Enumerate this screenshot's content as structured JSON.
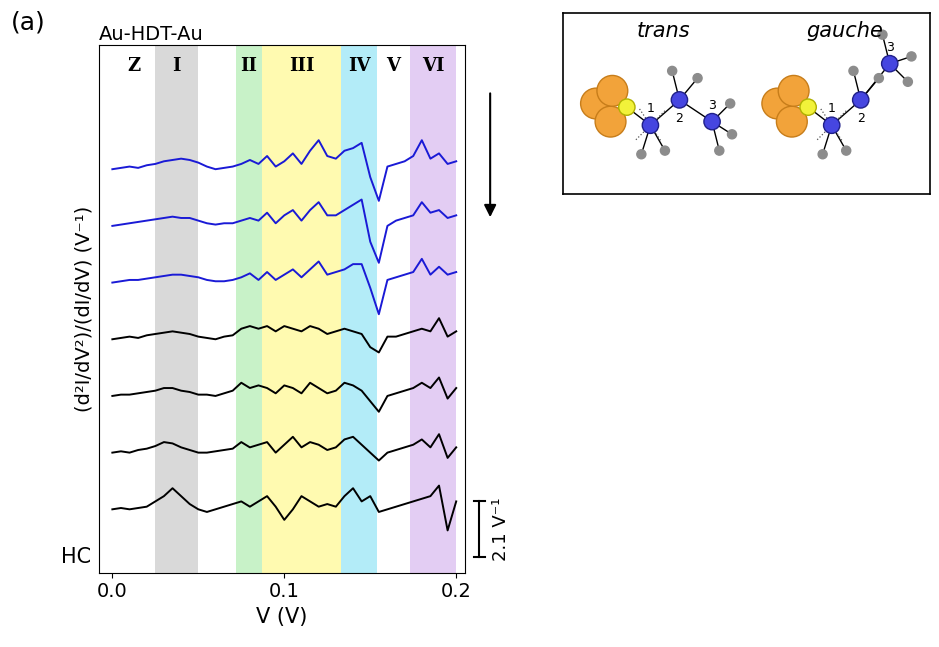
{
  "chart_data": {
    "type": "line",
    "panel_label": "(a)",
    "title": "Au-HDT-Au",
    "x_label": "V (V)",
    "y_label": "(d²I/dV²)/(dI/dV) (V⁻¹)",
    "x": [
      0,
      0.005,
      0.01,
      0.015,
      0.02,
      0.025,
      0.03,
      0.035,
      0.04,
      0.045,
      0.05,
      0.055,
      0.06,
      0.065,
      0.07,
      0.075,
      0.08,
      0.085,
      0.09,
      0.095,
      0.1,
      0.105,
      0.11,
      0.115,
      0.12,
      0.125,
      0.13,
      0.135,
      0.14,
      0.145,
      0.15,
      0.155,
      0.16,
      0.165,
      0.17,
      0.175,
      0.18,
      0.185,
      0.19,
      0.195,
      0.2
    ],
    "series": [
      {
        "color": "#1a1ad6",
        "values": [
          15.3,
          15.35,
          15.4,
          15.35,
          15.45,
          15.5,
          15.6,
          15.65,
          15.7,
          15.65,
          15.55,
          15.4,
          15.3,
          15.35,
          15.4,
          15.5,
          15.65,
          15.5,
          15.8,
          15.4,
          15.6,
          15.9,
          15.5,
          16.0,
          16.4,
          15.8,
          15.7,
          16.0,
          16.1,
          16.3,
          15.0,
          14.1,
          15.4,
          15.5,
          15.6,
          15.8,
          16.4,
          15.7,
          15.9,
          15.5,
          15.6
        ]
      },
      {
        "color": "#1a1ad6",
        "values": [
          13.15,
          13.2,
          13.25,
          13.3,
          13.35,
          13.4,
          13.45,
          13.5,
          13.45,
          13.45,
          13.35,
          13.25,
          13.2,
          13.25,
          13.25,
          13.35,
          13.45,
          13.35,
          13.65,
          13.25,
          13.55,
          13.75,
          13.35,
          13.75,
          14.05,
          13.55,
          13.55,
          13.75,
          13.95,
          14.15,
          12.55,
          11.75,
          13.15,
          13.35,
          13.45,
          13.55,
          14.05,
          13.65,
          13.75,
          13.45,
          13.55
        ]
      },
      {
        "color": "#1a1ad6",
        "values": [
          11.0,
          11.05,
          11.1,
          11.1,
          11.15,
          11.2,
          11.25,
          11.3,
          11.3,
          11.25,
          11.2,
          11.1,
          11.05,
          11.05,
          11.1,
          11.2,
          11.35,
          11.1,
          11.4,
          11.1,
          11.3,
          11.5,
          11.2,
          11.5,
          11.8,
          11.3,
          11.4,
          11.5,
          11.7,
          11.7,
          10.8,
          9.8,
          11.1,
          11.2,
          11.3,
          11.4,
          11.9,
          11.3,
          11.6,
          11.3,
          11.4
        ]
      },
      {
        "color": "#000000",
        "values": [
          8.85,
          8.9,
          8.95,
          8.9,
          9.0,
          9.05,
          9.1,
          9.15,
          9.1,
          9.05,
          8.95,
          8.9,
          8.85,
          8.95,
          9.0,
          9.25,
          9.35,
          9.25,
          9.35,
          9.15,
          9.35,
          9.25,
          9.15,
          9.35,
          9.25,
          9.05,
          9.15,
          9.25,
          9.15,
          9.05,
          8.55,
          8.35,
          8.95,
          8.95,
          9.05,
          9.15,
          9.25,
          9.15,
          9.65,
          8.95,
          9.15
        ]
      },
      {
        "color": "#000000",
        "values": [
          6.7,
          6.75,
          6.75,
          6.8,
          6.85,
          6.9,
          7.0,
          7.0,
          6.9,
          6.85,
          6.75,
          6.75,
          6.7,
          6.8,
          6.9,
          7.2,
          7.0,
          7.1,
          7.0,
          6.8,
          7.1,
          7.0,
          6.8,
          7.2,
          7.0,
          6.8,
          6.9,
          7.2,
          7.1,
          6.9,
          6.5,
          6.1,
          6.7,
          6.8,
          6.9,
          7.0,
          7.2,
          7.0,
          7.4,
          6.6,
          7.0
        ]
      },
      {
        "color": "#000000",
        "values": [
          4.55,
          4.6,
          4.55,
          4.65,
          4.7,
          4.8,
          4.95,
          4.9,
          4.75,
          4.65,
          4.55,
          4.55,
          4.6,
          4.65,
          4.7,
          4.95,
          4.75,
          4.85,
          4.95,
          4.55,
          4.85,
          5.15,
          4.75,
          4.95,
          4.85,
          4.65,
          4.75,
          5.05,
          5.15,
          4.85,
          4.55,
          4.25,
          4.55,
          4.65,
          4.75,
          4.85,
          5.05,
          4.75,
          5.25,
          4.35,
          4.75
        ]
      },
      {
        "name": "HC",
        "color": "#000000",
        "values": [
          2.4,
          2.45,
          2.4,
          2.45,
          2.5,
          2.7,
          2.9,
          3.2,
          2.9,
          2.6,
          2.4,
          2.3,
          2.4,
          2.5,
          2.6,
          2.7,
          2.5,
          2.7,
          2.9,
          2.5,
          2.0,
          2.4,
          2.9,
          2.7,
          2.5,
          2.6,
          2.5,
          2.9,
          3.2,
          2.7,
          2.9,
          2.3,
          2.4,
          2.5,
          2.6,
          2.7,
          2.8,
          2.9,
          3.3,
          1.6,
          2.7
        ]
      }
    ],
    "xlim": [
      -0.008,
      0.205
    ],
    "ylim": [
      0,
      20
    ],
    "xticks": [
      {
        "value": 0,
        "label": "0.0"
      },
      0.1,
      0.2
    ],
    "yticks": [],
    "tick_labels": "x",
    "regions": [
      {
        "label": "Z",
        "start": 0,
        "end": 0.025,
        "color": null
      },
      {
        "label": "I",
        "start": 0.025,
        "end": 0.05,
        "color": "#d9d9d9"
      },
      {
        "label": "II",
        "start": 0.072,
        "end": 0.087,
        "color": "#c8f2c8"
      },
      {
        "label": "III",
        "start": 0.087,
        "end": 0.133,
        "color": "#fffab0"
      },
      {
        "label": "IV",
        "start": 0.133,
        "end": 0.154,
        "color": "#b3ecf8"
      },
      {
        "label": "V",
        "start": 0.154,
        "end": 0.173,
        "color": null
      },
      {
        "label": "VI",
        "start": 0.173,
        "end": 0.2,
        "color": "#e3cdf3"
      }
    ],
    "scale_bar": {
      "value": 2.1,
      "label": "2.1 V⁻¹"
    },
    "inset": {
      "labels": [
        "trans",
        "gauche"
      ],
      "atom_labels": [
        "1",
        "2",
        "3"
      ]
    }
  }
}
